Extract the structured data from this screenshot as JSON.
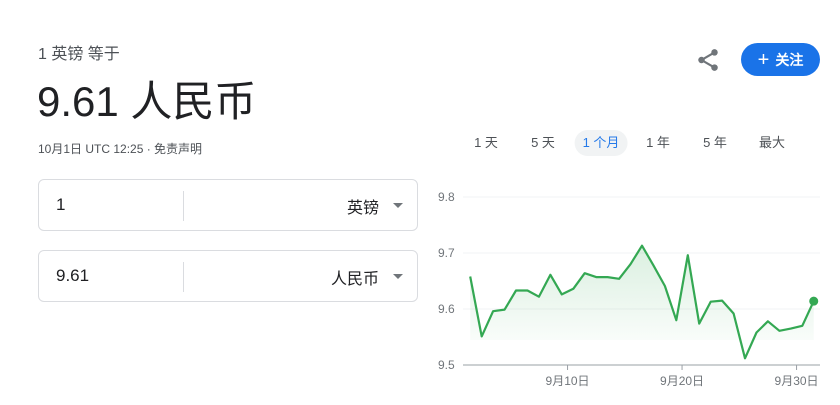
{
  "header": {
    "subtitle": "1 英镑 等于",
    "result": "9.61 人民币",
    "timestamp": "10月1日 UTC 12:25 · 免责声明"
  },
  "actions": {
    "share_icon": "share-icon",
    "follow_label": "关注",
    "follow_icon": "plus-icon",
    "follow_color": "#1a73e8"
  },
  "converter": {
    "from": {
      "value": "1",
      "currency": "英镑"
    },
    "to": {
      "value": "9.61",
      "currency": "人民币"
    }
  },
  "ranges": {
    "items": [
      "1 天",
      "5 天",
      "1 个月",
      "1 年",
      "5 年",
      "最大"
    ],
    "selected": "1 个月"
  },
  "chart_data": {
    "type": "area",
    "line_color": "#34a853",
    "ylim": [
      9.5,
      9.8
    ],
    "yticks": [
      "9.8",
      "9.7",
      "9.6",
      "9.5"
    ],
    "xticks": [
      {
        "label": "9月10日",
        "day": 10
      },
      {
        "label": "9月20日",
        "day": 20
      },
      {
        "label": "9月30日",
        "day": 30
      }
    ],
    "grid": true,
    "x": [
      "09-01",
      "09-02",
      "09-03",
      "09-04",
      "09-05",
      "09-06",
      "09-07",
      "09-08",
      "09-09",
      "09-10",
      "09-11",
      "09-12",
      "09-13",
      "09-14",
      "09-15",
      "09-16",
      "09-17",
      "09-18",
      "09-19",
      "09-20",
      "09-21",
      "09-22",
      "09-23",
      "09-24",
      "09-25",
      "09-26",
      "09-27",
      "09-28",
      "09-29",
      "09-30",
      "10-01"
    ],
    "values": [
      9.658,
      9.551,
      9.596,
      9.599,
      9.633,
      9.633,
      9.622,
      9.661,
      9.626,
      9.636,
      9.664,
      9.657,
      9.657,
      9.654,
      9.68,
      9.713,
      9.678,
      9.641,
      9.58,
      9.696,
      9.574,
      9.613,
      9.615,
      9.592,
      9.512,
      9.558,
      9.578,
      9.561,
      9.565,
      9.57,
      9.614
    ]
  }
}
